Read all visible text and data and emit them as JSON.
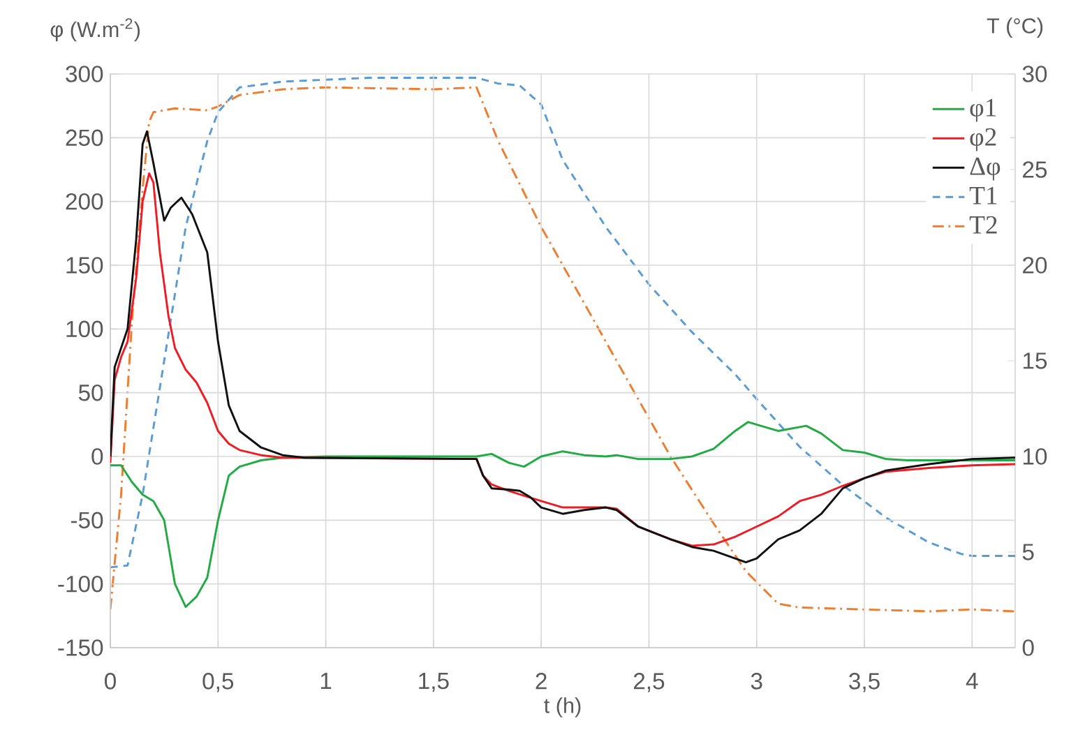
{
  "chart_data": {
    "type": "line",
    "xlabel": "t (h)",
    "ylabel": "φ (W.m$^{-2}$)",
    "y2label": "T (°C)",
    "xlim": [
      0,
      4.2
    ],
    "xticks": [
      0,
      {
        "value": 0.5,
        "label": "0,5"
      },
      1,
      {
        "value": 1.5,
        "label": "1,5"
      },
      2,
      {
        "value": 2.5,
        "label": "2,5"
      },
      3,
      {
        "value": 3.5,
        "label": "3,5"
      },
      4
    ],
    "ylim": [
      -150,
      300
    ],
    "yticks": [
      -150,
      -100,
      -50,
      0,
      50,
      100,
      150,
      200,
      250,
      300
    ],
    "y2lim": [
      0,
      30
    ],
    "y2ticks": [
      0,
      5,
      10,
      15,
      20,
      25,
      30
    ],
    "grid": true,
    "legend": "top right",
    "series": [
      {
        "name": "φ1",
        "color": "#22aa44",
        "line_style": "solid",
        "x": [
          0,
          0.05,
          0.1,
          0.15,
          0.2,
          0.25,
          0.3,
          0.35,
          0.4,
          0.45,
          0.5,
          0.55,
          0.6,
          0.7,
          0.8,
          1.0,
          1.5,
          1.7,
          1.77,
          1.85,
          1.92,
          2.0,
          2.1,
          2.2,
          2.3,
          2.35,
          2.45,
          2.6,
          2.7,
          2.8,
          2.9,
          2.96,
          3.0,
          3.1,
          3.23,
          3.3,
          3.4,
          3.5,
          3.6,
          3.7,
          3.9,
          4.2
        ],
        "values": [
          -7,
          -7,
          -20,
          -30,
          -35,
          -50,
          -100,
          -118,
          -110,
          -95,
          -50,
          -15,
          -8,
          -3,
          -1,
          0,
          0,
          0,
          2,
          -5,
          -8,
          0,
          4,
          1,
          0,
          1,
          -2,
          -2,
          0,
          6,
          20,
          27,
          25,
          20,
          24,
          18,
          5,
          3,
          -2,
          -3,
          -3,
          -3
        ]
      },
      {
        "name": "φ2",
        "color": "#ee1c24",
        "line_style": "solid",
        "x": [
          0,
          0.02,
          0.05,
          0.08,
          0.12,
          0.15,
          0.18,
          0.2,
          0.23,
          0.27,
          0.3,
          0.35,
          0.4,
          0.45,
          0.5,
          0.55,
          0.6,
          0.7,
          0.8,
          1.7,
          1.73,
          1.77,
          1.85,
          2.0,
          2.1,
          2.3,
          2.35,
          2.45,
          2.6,
          2.7,
          2.8,
          2.9,
          3.0,
          3.1,
          3.2,
          3.3,
          3.4,
          3.5,
          3.6,
          3.8,
          4.0,
          4.2
        ],
        "values": [
          -5,
          60,
          78,
          90,
          140,
          200,
          222,
          215,
          160,
          110,
          85,
          68,
          58,
          42,
          20,
          10,
          5,
          1,
          -1,
          -2,
          -15,
          -22,
          -27,
          -35,
          -40,
          -40,
          -41,
          -55,
          -65,
          -70,
          -69,
          -63,
          -55,
          -47,
          -35,
          -30,
          -23,
          -17,
          -12,
          -9,
          -7,
          -6
        ]
      },
      {
        "name": "Δφ",
        "color": "#111111",
        "line_style": "solid",
        "x": [
          0,
          0.02,
          0.05,
          0.08,
          0.12,
          0.15,
          0.17,
          0.2,
          0.25,
          0.28,
          0.33,
          0.38,
          0.45,
          0.5,
          0.55,
          0.6,
          0.7,
          0.8,
          0.9,
          1.7,
          1.73,
          1.77,
          1.85,
          1.9,
          1.95,
          2.0,
          2.1,
          2.2,
          2.3,
          2.35,
          2.45,
          2.6,
          2.7,
          2.8,
          2.9,
          2.95,
          3.0,
          3.1,
          3.2,
          3.3,
          3.4,
          3.5,
          3.6,
          3.8,
          4.0,
          4.2
        ],
        "values": [
          0,
          70,
          85,
          100,
          170,
          245,
          255,
          230,
          185,
          195,
          203,
          190,
          160,
          90,
          40,
          20,
          7,
          1,
          -1,
          -2,
          -15,
          -25,
          -26,
          -27,
          -32,
          -40,
          -45,
          -42,
          -40,
          -42,
          -55,
          -65,
          -71,
          -74,
          -80,
          -83,
          -80,
          -65,
          -58,
          -45,
          -25,
          -17,
          -11,
          -6,
          -2,
          -1
        ]
      },
      {
        "name": "T1",
        "color": "#5b9bd5",
        "line_style": "dashed",
        "axis": "y2",
        "x": [
          0,
          0.08,
          0.15,
          0.25,
          0.35,
          0.45,
          0.5,
          0.6,
          0.8,
          1.0,
          1.2,
          1.7,
          1.8,
          1.9,
          2.0,
          2.1,
          2.3,
          2.5,
          2.7,
          2.9,
          3.0,
          3.2,
          3.4,
          3.6,
          3.8,
          3.95,
          4.0,
          4.2
        ],
        "values": [
          4.2,
          4.3,
          8,
          15,
          22,
          26.5,
          28,
          29.3,
          29.6,
          29.7,
          29.8,
          29.8,
          29.5,
          29.4,
          28.4,
          25.5,
          22,
          19,
          16.5,
          14.3,
          13,
          10.5,
          8.5,
          6.8,
          5.5,
          4.9,
          4.8,
          4.8
        ]
      },
      {
        "name": "T2",
        "color": "#ed7d31",
        "line_style": "dashdot",
        "axis": "y2",
        "x": [
          0,
          0.05,
          0.1,
          0.15,
          0.18,
          0.2,
          0.3,
          0.45,
          0.5,
          0.6,
          0.8,
          1.0,
          1.5,
          1.7,
          1.8,
          2.0,
          2.2,
          2.4,
          2.6,
          2.8,
          2.95,
          3.1,
          3.2,
          3.5,
          3.8,
          4.0,
          4.2
        ],
        "values": [
          2,
          8,
          17,
          24,
          27.5,
          28,
          28.2,
          28.1,
          28.3,
          28.9,
          29.2,
          29.3,
          29.2,
          29.3,
          26.5,
          22,
          18,
          14,
          10,
          6.5,
          4,
          2.3,
          2.1,
          2.0,
          1.9,
          2.0,
          1.9
        ]
      }
    ]
  }
}
